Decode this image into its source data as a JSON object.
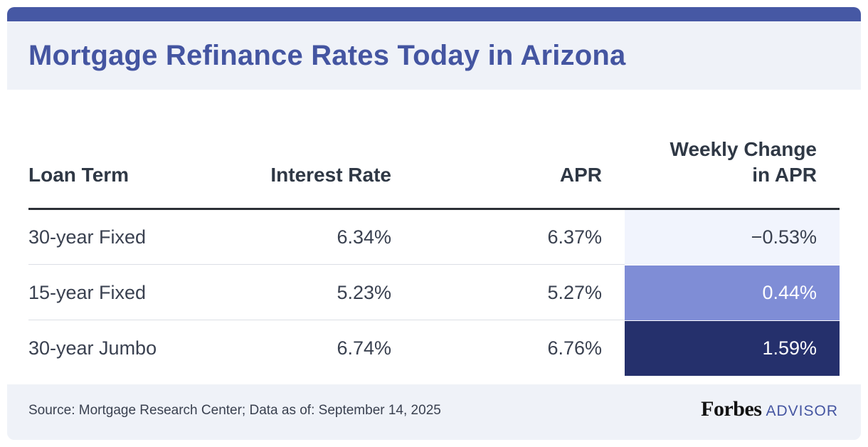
{
  "title": "Mortgage Refinance Rates Today in Arizona",
  "colors": {
    "accent": "#4658a4",
    "title": "#4455a1",
    "band": "#eff2f8",
    "change_negative": "#f1f4fd",
    "change_small": "#7f8dd6",
    "change_large": "#25306c"
  },
  "table": {
    "headers": {
      "term": "Loan Term",
      "rate": "Interest Rate",
      "apr": "APR",
      "change_line1": "Weekly Change",
      "change_line2": "in APR"
    },
    "rows": [
      {
        "term": "30-year Fixed",
        "rate": "6.34%",
        "apr": "6.37%",
        "change": "−0.53%",
        "change_bg": "#f1f4fd",
        "change_fg": "#3a4150"
      },
      {
        "term": "15-year Fixed",
        "rate": "5.23%",
        "apr": "5.27%",
        "change": "0.44%",
        "change_bg": "#7f8dd6",
        "change_fg": "#ffffff"
      },
      {
        "term": "30-year Jumbo",
        "rate": "6.74%",
        "apr": "6.76%",
        "change": "1.59%",
        "change_bg": "#25306c",
        "change_fg": "#ffffff"
      }
    ]
  },
  "chart_data": {
    "type": "table",
    "title": "Mortgage Refinance Rates Today in Arizona",
    "columns": [
      "Loan Term",
      "Interest Rate",
      "APR",
      "Weekly Change in APR"
    ],
    "rows": [
      [
        "30-year Fixed",
        6.34,
        6.37,
        -0.53
      ],
      [
        "15-year Fixed",
        5.23,
        5.27,
        0.44
      ],
      [
        "30-year Jumbo",
        6.74,
        6.76,
        1.59
      ]
    ],
    "units": "%"
  },
  "footer": {
    "source": "Source: Mortgage Research Center; Data as of: September 14, 2025",
    "brand_name": "Forbes",
    "brand_suffix": "ADVISOR"
  }
}
